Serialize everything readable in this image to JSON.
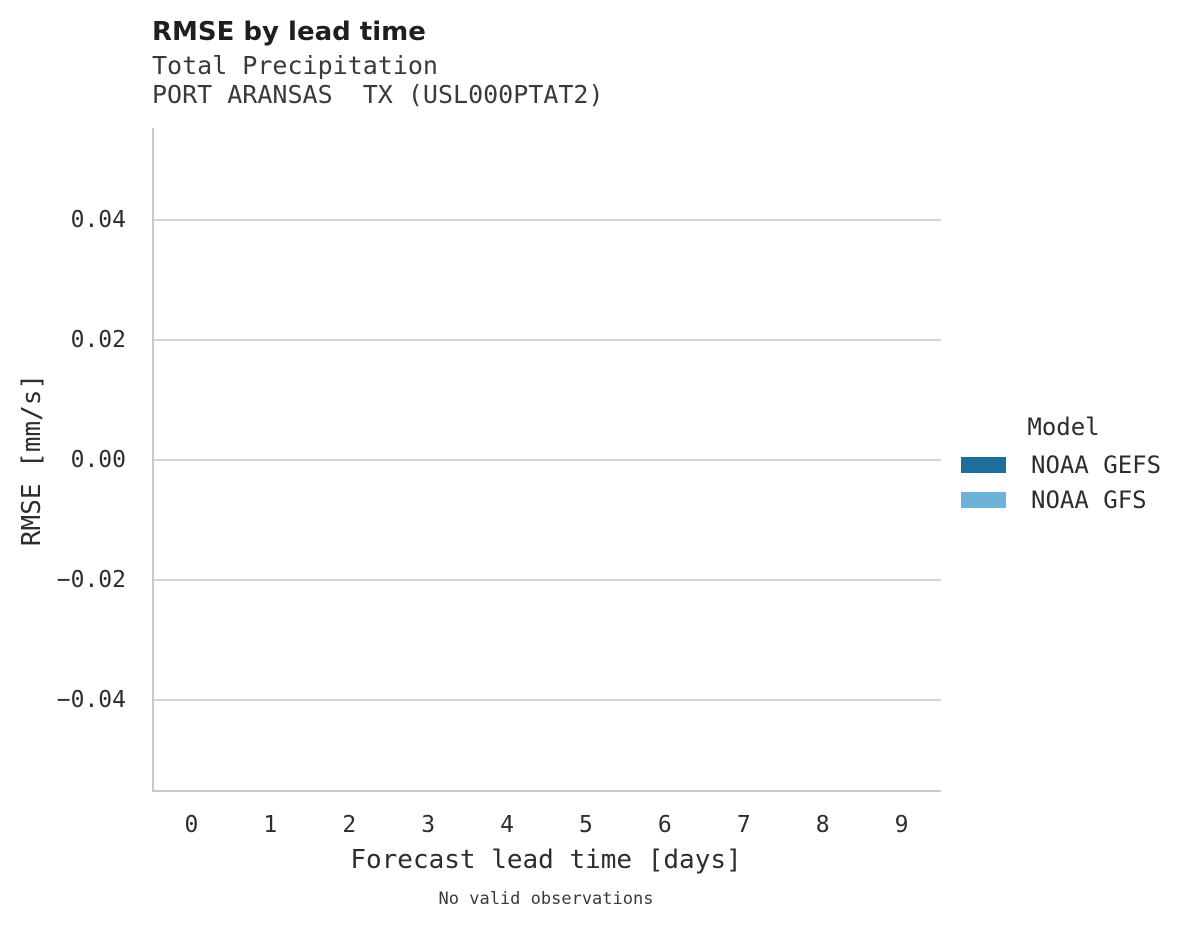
{
  "header": {
    "title": "RMSE by lead time",
    "subtitle_line1": "Total Precipitation",
    "subtitle_line2": "PORT ARANSAS  TX (USL000PTAT2)"
  },
  "legend": {
    "title": "Model",
    "entries": [
      {
        "label": "NOAA GEFS",
        "color": "#1f6e9c"
      },
      {
        "label": "NOAA GFS",
        "color": "#6fb2d9"
      }
    ]
  },
  "colors": {
    "axis_line": "#c9c9c9",
    "grid_line": "#d3d3d3",
    "title_text": "#1f1f1f",
    "subtitle_text": "#3a3a3a",
    "label_text": "#2d2d2d",
    "background": "#ffffff"
  },
  "chart_data": {
    "type": "bar",
    "title": "RMSE by lead time",
    "subtitle": [
      "Total Precipitation",
      "PORT ARANSAS  TX (USL000PTAT2)"
    ],
    "xlabel": "Forecast lead time [days]",
    "ylabel": "RMSE [mm/s]",
    "categories": [
      "0",
      "1",
      "2",
      "3",
      "4",
      "5",
      "6",
      "7",
      "8",
      "9"
    ],
    "series": [
      {
        "name": "NOAA GEFS",
        "color": "#1f6e9c",
        "values": [
          null,
          null,
          null,
          null,
          null,
          null,
          null,
          null,
          null,
          null
        ]
      },
      {
        "name": "NOAA GFS",
        "color": "#6fb2d9",
        "values": [
          null,
          null,
          null,
          null,
          null,
          null,
          null,
          null,
          null,
          null
        ]
      }
    ],
    "y_ticks": [
      0.04,
      0.02,
      0,
      -0.02,
      -0.04
    ],
    "y_tick_labels": [
      "0.04",
      "0.02",
      "0.00",
      "−0.02",
      "−0.04"
    ],
    "ylim": [
      -0.0553,
      0.0553
    ],
    "grid": "horizontal-only",
    "legend_position": "right",
    "legend_title": "Model",
    "note": "No valid observations",
    "note_meaning": "Plot area is empty; no bars are drawn because there are no valid observations."
  }
}
